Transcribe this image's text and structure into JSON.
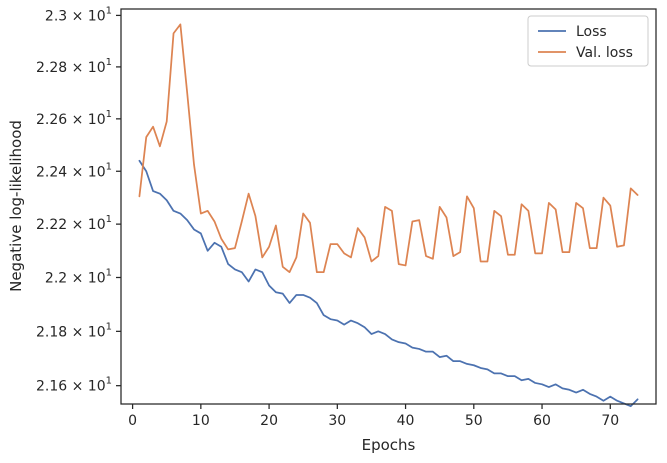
{
  "chart_data": {
    "type": "line",
    "xlabel": "Epochs",
    "ylabel": "Negative log-likelihood",
    "xlim": [
      -1.7,
      76.7
    ],
    "ylim": [
      21.533,
      23.025
    ],
    "y_scale": "log",
    "grid": false,
    "legend_position": "top-right",
    "x_ticks": [
      0,
      10,
      20,
      30,
      40,
      50,
      60,
      70
    ],
    "x_tick_labels": [
      "0",
      "10",
      "20",
      "30",
      "40",
      "50",
      "60",
      "70"
    ],
    "y_ticks": [
      21.6,
      21.8,
      22.0,
      22.2,
      22.4,
      22.6,
      22.8,
      23.0
    ],
    "y_tick_labels": [
      {
        "mant": "2.16",
        "exp": "1"
      },
      {
        "mant": "2.18",
        "exp": "1"
      },
      {
        "mant": "2.2",
        "exp": "1"
      },
      {
        "mant": "2.22",
        "exp": "1"
      },
      {
        "mant": "2.24",
        "exp": "1"
      },
      {
        "mant": "2.26",
        "exp": "1"
      },
      {
        "mant": "2.28",
        "exp": "1"
      },
      {
        "mant": "2.3",
        "exp": "1"
      }
    ],
    "x": [
      1,
      2,
      3,
      4,
      5,
      6,
      7,
      8,
      9,
      10,
      11,
      12,
      13,
      14,
      15,
      16,
      17,
      18,
      19,
      20,
      21,
      22,
      23,
      24,
      25,
      26,
      27,
      28,
      29,
      30,
      31,
      32,
      33,
      34,
      35,
      36,
      37,
      38,
      39,
      40,
      41,
      42,
      43,
      44,
      45,
      46,
      47,
      48,
      49,
      50,
      51,
      52,
      53,
      54,
      55,
      56,
      57,
      58,
      59,
      60,
      61,
      62,
      63,
      64,
      65,
      66,
      67,
      68,
      69,
      70,
      71,
      72,
      73,
      74
    ],
    "series": [
      {
        "name": "Loss",
        "color": "#4c72b0",
        "values": [
          22.44,
          22.4,
          22.325,
          22.315,
          22.29,
          22.25,
          22.24,
          22.215,
          22.18,
          22.165,
          22.1,
          22.13,
          22.115,
          22.05,
          22.03,
          22.02,
          21.985,
          22.03,
          22.02,
          21.97,
          21.945,
          21.94,
          21.905,
          21.935,
          21.935,
          21.925,
          21.905,
          21.86,
          21.845,
          21.84,
          21.825,
          21.84,
          21.83,
          21.815,
          21.79,
          21.8,
          21.79,
          21.77,
          21.76,
          21.755,
          21.74,
          21.735,
          21.725,
          21.725,
          21.705,
          21.71,
          21.69,
          21.69,
          21.68,
          21.675,
          21.665,
          21.66,
          21.645,
          21.645,
          21.635,
          21.635,
          21.62,
          21.625,
          21.61,
          21.605,
          21.595,
          21.605,
          21.59,
          21.585,
          21.575,
          21.585,
          21.57,
          21.56,
          21.545,
          21.56,
          21.545,
          21.535,
          21.525,
          21.55
        ]
      },
      {
        "name": "Val. loss",
        "color": "#dd8452",
        "values": [
          22.305,
          22.53,
          22.57,
          22.495,
          22.59,
          22.93,
          22.965,
          22.7,
          22.425,
          22.24,
          22.25,
          22.21,
          22.145,
          22.105,
          22.11,
          22.21,
          22.315,
          22.23,
          22.075,
          22.115,
          22.195,
          22.04,
          22.02,
          22.075,
          22.24,
          22.205,
          22.02,
          22.02,
          22.125,
          22.125,
          22.09,
          22.075,
          22.185,
          22.15,
          22.06,
          22.08,
          22.265,
          22.25,
          22.05,
          22.045,
          22.21,
          22.215,
          22.08,
          22.07,
          22.265,
          22.225,
          22.08,
          22.095,
          22.305,
          22.26,
          22.06,
          22.06,
          22.25,
          22.23,
          22.085,
          22.085,
          22.275,
          22.25,
          22.09,
          22.09,
          22.28,
          22.255,
          22.095,
          22.095,
          22.28,
          22.26,
          22.11,
          22.11,
          22.3,
          22.27,
          22.115,
          22.12,
          22.335,
          22.31
        ]
      }
    ]
  }
}
